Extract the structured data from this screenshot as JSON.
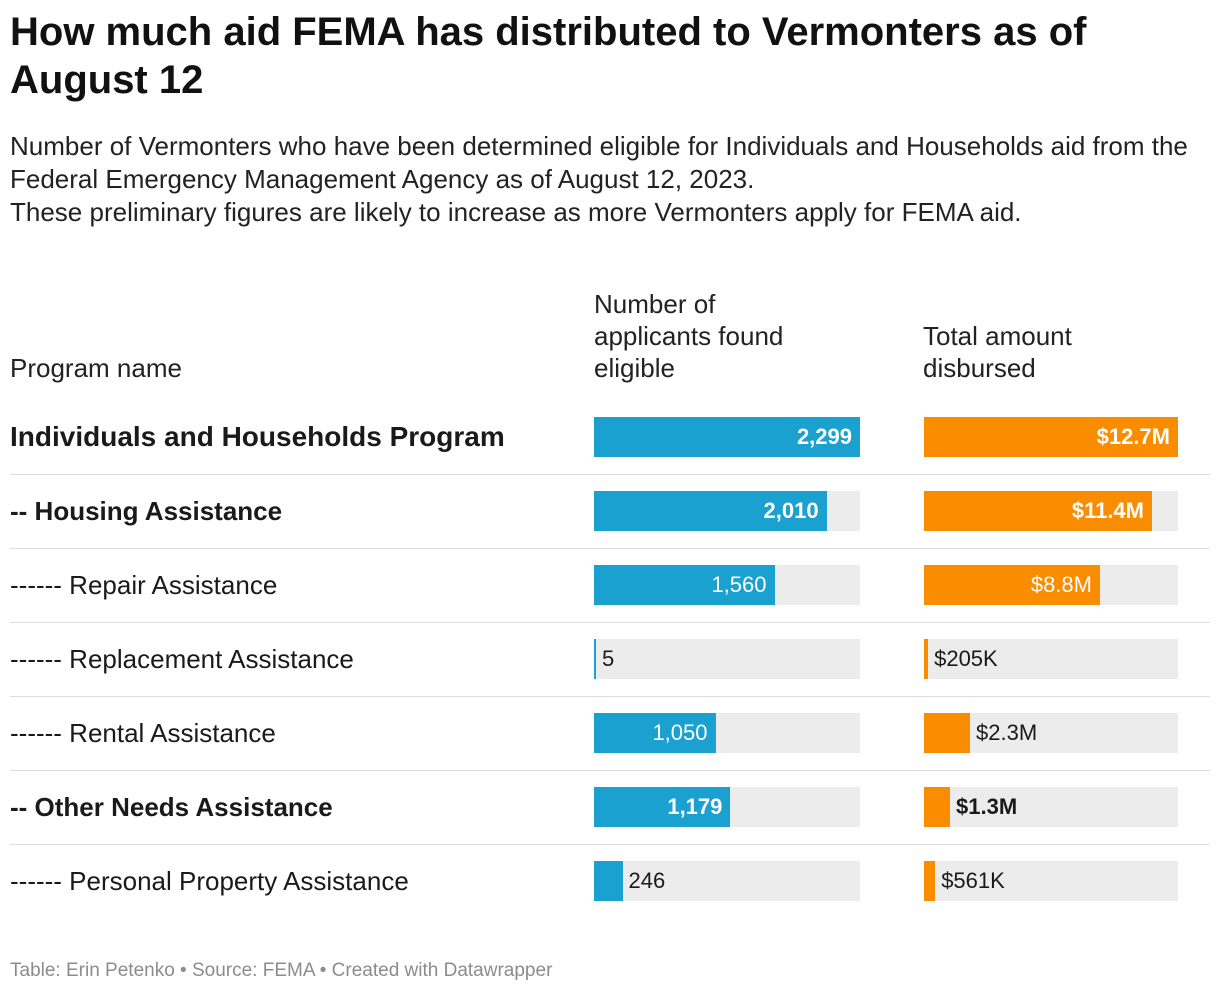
{
  "title": "How much aid FEMA has distributed to Vermonters as of August 12",
  "subtitle": {
    "line1": "Number of Vermonters who have been determined eligible for Individuals and Households aid from the Federal Emergency Management Agency as of August 12, 2023.",
    "line2": "These preliminary figures are likely to increase as more Vermonters apply for FEMA aid."
  },
  "columns": {
    "program": "Program name",
    "count": "Number of\napplicants found\neligible",
    "amount": "Total amount\ndisbursed"
  },
  "colors": {
    "count_bar": "#1ba1cf",
    "amount_bar": "#fa8c00",
    "track": "#ececec"
  },
  "chart_data": {
    "type": "table",
    "count_max": 2299,
    "amount_max": 12.7,
    "rows": [
      {
        "program": "Individuals and Households Program",
        "level": 0,
        "count": 2299,
        "count_label": "2,299",
        "amount": 12.7,
        "amount_label": "$12.7M"
      },
      {
        "program": "-- Housing Assistance",
        "level": 1,
        "count": 2010,
        "count_label": "2,010",
        "amount": 11.4,
        "amount_label": "$11.4M"
      },
      {
        "program": "------ Repair Assistance",
        "level": 2,
        "count": 1560,
        "count_label": "1,560",
        "amount": 8.8,
        "amount_label": "$8.8M"
      },
      {
        "program": "------ Replacement Assistance",
        "level": 2,
        "count": 5,
        "count_label": "5",
        "amount": 0.205,
        "amount_label": "$205K"
      },
      {
        "program": "------ Rental Assistance",
        "level": 2,
        "count": 1050,
        "count_label": "1,050",
        "amount": 2.3,
        "amount_label": "$2.3M"
      },
      {
        "program": "-- Other Needs Assistance",
        "level": 1,
        "count": 1179,
        "count_label": "1,179",
        "amount": 1.3,
        "amount_label": "$1.3M"
      },
      {
        "program": "------ Personal Property Assistance",
        "level": 2,
        "count": 246,
        "count_label": "246",
        "amount": 0.561,
        "amount_label": "$561K"
      }
    ]
  },
  "footer": "Table: Erin Petenko • Source: FEMA • Created with Datawrapper"
}
